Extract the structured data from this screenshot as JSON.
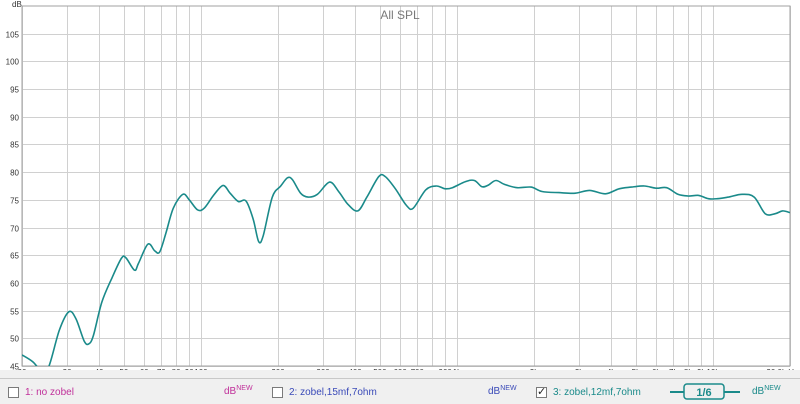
{
  "chart_data": {
    "type": "line",
    "title": "All SPL",
    "ylabel": "dB",
    "xunit": "Hz",
    "xscale": "log",
    "xlim": [
      20,
      20000
    ],
    "ylim": [
      45,
      110
    ],
    "grid": true,
    "x_tick_labels": [
      {
        "v": 20,
        "t": "20"
      },
      {
        "v": 30,
        "t": "30"
      },
      {
        "v": 40,
        "t": "40"
      },
      {
        "v": 50,
        "t": "50"
      },
      {
        "v": 60,
        "t": "60"
      },
      {
        "v": 70,
        "t": "70"
      },
      {
        "v": 80,
        "t": "80"
      },
      {
        "v": 90,
        "t": "90"
      },
      {
        "v": 100,
        "t": "100"
      },
      {
        "v": 200,
        "t": "200"
      },
      {
        "v": 300,
        "t": "300"
      },
      {
        "v": 400,
        "t": "400"
      },
      {
        "v": 500,
        "t": "500"
      },
      {
        "v": 600,
        "t": "600"
      },
      {
        "v": 700,
        "t": "700"
      },
      {
        "v": 900,
        "t": "900"
      },
      {
        "v": 1000,
        "t": "1k"
      },
      {
        "v": 2000,
        "t": "2k"
      },
      {
        "v": 3000,
        "t": "3k"
      },
      {
        "v": 4000,
        "t": "4k"
      },
      {
        "v": 5000,
        "t": "5k"
      },
      {
        "v": 6000,
        "t": "6k"
      },
      {
        "v": 7000,
        "t": "7k"
      },
      {
        "v": 8000,
        "t": "8k"
      },
      {
        "v": 9000,
        "t": "9k"
      },
      {
        "v": 10000,
        "t": "10k"
      },
      {
        "v": 20000,
        "t": "20.0k Hz"
      }
    ],
    "y_ticks": [
      45,
      50,
      55,
      60,
      65,
      70,
      75,
      80,
      85,
      90,
      95,
      100,
      105
    ],
    "series": [
      {
        "name": "3: zobel,12mf,7ohm",
        "color": "#1a8a8a",
        "points": [
          [
            20,
            47
          ],
          [
            22,
            45.8
          ],
          [
            24,
            44
          ],
          [
            25.5,
            45
          ],
          [
            28,
            51.5
          ],
          [
            30.5,
            54.8
          ],
          [
            32.5,
            53.5
          ],
          [
            35,
            49.5
          ],
          [
            36.5,
            49
          ],
          [
            38,
            50.5
          ],
          [
            41,
            56.5
          ],
          [
            45,
            61
          ],
          [
            49,
            64.5
          ],
          [
            51,
            64.5
          ],
          [
            55,
            62.3
          ],
          [
            57,
            63.5
          ],
          [
            62,
            67
          ],
          [
            66,
            65.8
          ],
          [
            69,
            65.6
          ],
          [
            73,
            69
          ],
          [
            78,
            73.5
          ],
          [
            85,
            76
          ],
          [
            90,
            75
          ],
          [
            97,
            73.2
          ],
          [
            103,
            73.5
          ],
          [
            112,
            75.8
          ],
          [
            122,
            77.6
          ],
          [
            130,
            76.2
          ],
          [
            140,
            74.7
          ],
          [
            150,
            74.8
          ],
          [
            160,
            71.5
          ],
          [
            168,
            67.5
          ],
          [
            175,
            68.5
          ],
          [
            190,
            75.5
          ],
          [
            205,
            77.5
          ],
          [
            218,
            79
          ],
          [
            228,
            78.6
          ],
          [
            245,
            76.2
          ],
          [
            262,
            75.5
          ],
          [
            285,
            76
          ],
          [
            318,
            78.2
          ],
          [
            345,
            76.5
          ],
          [
            375,
            74.2
          ],
          [
            410,
            73
          ],
          [
            445,
            75.5
          ],
          [
            495,
            79.2
          ],
          [
            525,
            79.2
          ],
          [
            575,
            77
          ],
          [
            635,
            74
          ],
          [
            675,
            73.5
          ],
          [
            755,
            76.8
          ],
          [
            830,
            77.5
          ],
          [
            900,
            77
          ],
          [
            960,
            77.2
          ],
          [
            1080,
            78.3
          ],
          [
            1170,
            78.5
          ],
          [
            1250,
            77.4
          ],
          [
            1320,
            77.6
          ],
          [
            1420,
            78.5
          ],
          [
            1530,
            77.8
          ],
          [
            1720,
            77.2
          ],
          [
            1950,
            77.3
          ],
          [
            2150,
            76.5
          ],
          [
            2500,
            76.3
          ],
          [
            2900,
            76.2
          ],
          [
            3300,
            76.7
          ],
          [
            3800,
            76.1
          ],
          [
            4300,
            77
          ],
          [
            4800,
            77.3
          ],
          [
            5400,
            77.5
          ],
          [
            6000,
            77.1
          ],
          [
            6600,
            77.2
          ],
          [
            7300,
            76
          ],
          [
            8000,
            75.7
          ],
          [
            8800,
            75.8
          ],
          [
            9600,
            75.2
          ],
          [
            10400,
            75.2
          ],
          [
            11500,
            75.5
          ],
          [
            13000,
            76
          ],
          [
            14500,
            75.5
          ],
          [
            16000,
            72.5
          ],
          [
            17500,
            72.5
          ],
          [
            18700,
            73
          ],
          [
            20000,
            72.7
          ]
        ]
      }
    ]
  },
  "legend": [
    {
      "label": "1: no zobel",
      "checked": false,
      "color": "#c0309a",
      "db": "dB",
      "sup": "NEW"
    },
    {
      "label": "2: zobel,15mf,7ohm",
      "checked": false,
      "color": "#3a4ab8",
      "db": "dB",
      "sup": "NEW"
    },
    {
      "label": "3: zobel,12mf,7ohm",
      "checked": true,
      "color": "#1a8a8a",
      "db": "dB",
      "sup": "NEW"
    }
  ],
  "smoothing": {
    "label": "1/6",
    "color": "#1a8a8a"
  }
}
